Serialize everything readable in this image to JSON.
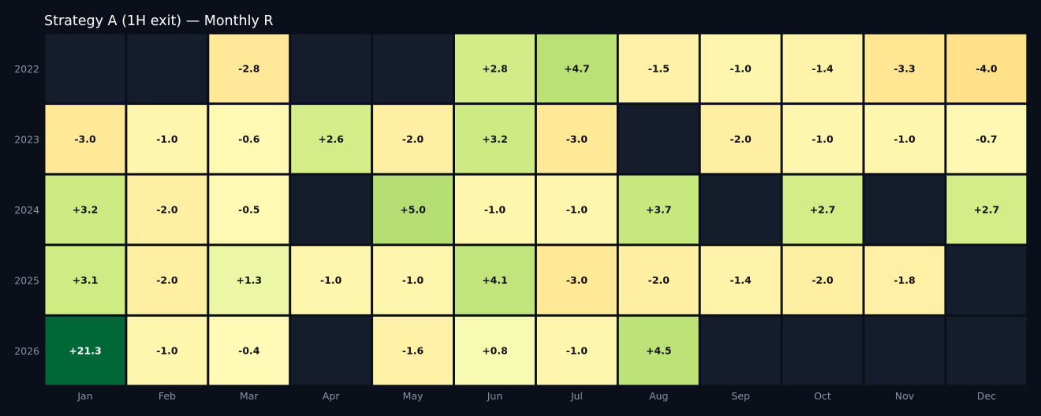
{
  "chart_data": {
    "type": "heatmap",
    "title": "Strategy A (1H exit) — Monthly R",
    "x_categories": [
      "Jan",
      "Feb",
      "Mar",
      "Apr",
      "May",
      "Jun",
      "Jul",
      "Aug",
      "Sep",
      "Oct",
      "Nov",
      "Dec"
    ],
    "y_categories": [
      "2022",
      "2023",
      "2024",
      "2025",
      "2026"
    ],
    "values": [
      [
        null,
        null,
        -2.8,
        null,
        null,
        2.8,
        4.7,
        -1.5,
        -1.0,
        -1.4,
        -3.3,
        -4.0
      ],
      [
        -3.0,
        -1.0,
        -0.6,
        2.6,
        -2.0,
        3.2,
        -3.0,
        null,
        -2.0,
        -1.0,
        -1.0,
        -0.7
      ],
      [
        3.2,
        -2.0,
        -0.5,
        null,
        5.0,
        -1.0,
        -1.0,
        3.7,
        null,
        2.7,
        null,
        2.7
      ],
      [
        3.1,
        -2.0,
        1.3,
        -1.0,
        -1.0,
        4.1,
        -3.0,
        -2.0,
        -1.4,
        -2.0,
        -1.8,
        null
      ],
      [
        21.3,
        -1.0,
        -0.4,
        null,
        -1.6,
        0.8,
        -1.0,
        4.5,
        null,
        null,
        null,
        null
      ]
    ],
    "labels": [
      [
        null,
        null,
        "-2.8",
        null,
        null,
        "+2.8",
        "+4.7",
        "-1.5",
        "-1.0",
        "-1.4",
        "-3.3",
        "-4.0"
      ],
      [
        "-3.0",
        "-1.0",
        "-0.6",
        "+2.6",
        "-2.0",
        "+3.2",
        "-3.0",
        null,
        "-2.0",
        "-1.0",
        "-1.0",
        "-0.7"
      ],
      [
        "+3.2",
        "-2.0",
        "-0.5",
        null,
        "+5.0",
        "-1.0",
        "-1.0",
        "+3.7",
        null,
        "+2.7",
        null,
        "+2.7"
      ],
      [
        "+3.1",
        "-2.0",
        "+1.3",
        "-1.0",
        "-1.0",
        "+4.1",
        "-3.0",
        "-2.0",
        "-1.4",
        "-2.0",
        "-1.8",
        null
      ],
      [
        "+21.3",
        "-1.0",
        "-0.4",
        null,
        "-1.6",
        "+0.8",
        "-1.0",
        "+4.5",
        null,
        null,
        null,
        null
      ]
    ],
    "colorscale": "yellow-green",
    "colors": {
      "background": "#0b0f19",
      "empty_cell": "#151d2c",
      "cell_border": "#0b0f19",
      "tick_text": "#8a93a6",
      "title_text": "#ffffff"
    }
  }
}
